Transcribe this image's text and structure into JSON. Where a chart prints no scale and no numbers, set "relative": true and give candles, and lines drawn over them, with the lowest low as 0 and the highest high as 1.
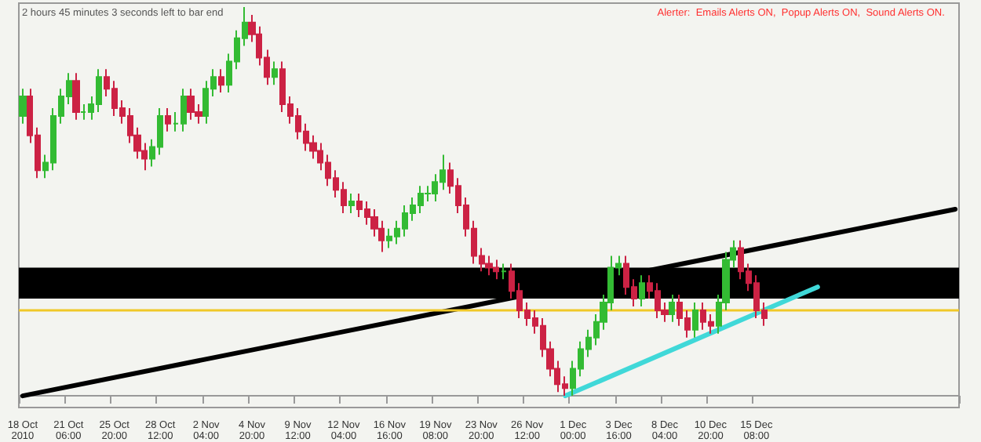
{
  "chart_data": {
    "type": "candlestick",
    "relative": true,
    "annotations": [
      "2 hours 45 minutes 3 seconds left to bar end",
      "Alerter:  Emails Alerts ON,  Popup Alerts ON,  Sound Alerts ON."
    ],
    "categories": [
      "18 Oct 2010",
      null,
      null,
      null,
      null,
      null,
      "21 Oct 06:00",
      null,
      null,
      null,
      null,
      null,
      "25 Oct 20:00",
      null,
      null,
      null,
      null,
      null,
      "28 Oct 12:00",
      null,
      null,
      null,
      null,
      null,
      "2 Nov 04:00",
      null,
      null,
      null,
      null,
      null,
      "4 Nov 20:00",
      null,
      null,
      null,
      null,
      null,
      "9 Nov 12:00",
      null,
      null,
      null,
      null,
      null,
      "12 Nov 04:00",
      null,
      null,
      null,
      null,
      null,
      "16 Nov 16:00",
      null,
      null,
      null,
      null,
      null,
      "19 Nov 08:00",
      null,
      null,
      null,
      null,
      null,
      "23 Nov 20:00",
      null,
      null,
      null,
      null,
      null,
      "26 Nov 12:00",
      null,
      null,
      null,
      null,
      null,
      "1 Dec 00:00",
      null,
      null,
      null,
      null,
      null,
      "3 Dec 16:00",
      null,
      null,
      null,
      null,
      null,
      "8 Dec 04:00",
      null,
      null,
      null,
      null,
      null,
      "10 Dec 20:00",
      null,
      null,
      null,
      null,
      null,
      "15 Dec 08:00",
      null,
      null,
      null,
      null,
      null,
      null,
      null,
      null,
      null,
      null,
      null,
      null,
      null,
      null,
      null,
      null,
      null,
      null,
      null,
      null,
      null,
      null,
      null,
      null,
      null,
      null
    ],
    "ohlc": [
      [
        0.72,
        0.79,
        0.7,
        0.77
      ],
      [
        0.77,
        0.79,
        0.65,
        0.67
      ],
      [
        0.67,
        0.69,
        0.56,
        0.58
      ],
      [
        0.58,
        0.62,
        0.56,
        0.6
      ],
      [
        0.6,
        0.74,
        0.58,
        0.72
      ],
      [
        0.72,
        0.79,
        0.7,
        0.77
      ],
      [
        0.77,
        0.83,
        0.75,
        0.81
      ],
      [
        0.81,
        0.83,
        0.71,
        0.73
      ],
      [
        0.73,
        0.75,
        0.71,
        0.73
      ],
      [
        0.73,
        0.77,
        0.71,
        0.75
      ],
      [
        0.75,
        0.84,
        0.73,
        0.82
      ],
      [
        0.82,
        0.84,
        0.77,
        0.79
      ],
      [
        0.79,
        0.81,
        0.72,
        0.74
      ],
      [
        0.74,
        0.76,
        0.7,
        0.72
      ],
      [
        0.72,
        0.74,
        0.65,
        0.67
      ],
      [
        0.67,
        0.69,
        0.61,
        0.63
      ],
      [
        0.63,
        0.65,
        0.58,
        0.61
      ],
      [
        0.61,
        0.66,
        0.59,
        0.64
      ],
      [
        0.64,
        0.74,
        0.62,
        0.72
      ],
      [
        0.72,
        0.74,
        0.68,
        0.7
      ],
      [
        0.7,
        0.73,
        0.68,
        0.7
      ],
      [
        0.7,
        0.79,
        0.68,
        0.77
      ],
      [
        0.77,
        0.79,
        0.71,
        0.73
      ],
      [
        0.73,
        0.75,
        0.7,
        0.72
      ],
      [
        0.72,
        0.81,
        0.7,
        0.79
      ],
      [
        0.79,
        0.84,
        0.77,
        0.82
      ],
      [
        0.82,
        0.84,
        0.78,
        0.8
      ],
      [
        0.8,
        0.88,
        0.78,
        0.86
      ],
      [
        0.86,
        0.94,
        0.84,
        0.92
      ],
      [
        0.92,
        1.0,
        0.9,
        0.96
      ],
      [
        0.96,
        0.98,
        0.91,
        0.93
      ],
      [
        0.93,
        0.95,
        0.85,
        0.87
      ],
      [
        0.87,
        0.89,
        0.8,
        0.82
      ],
      [
        0.82,
        0.86,
        0.8,
        0.84
      ],
      [
        0.84,
        0.86,
        0.73,
        0.75
      ],
      [
        0.75,
        0.77,
        0.7,
        0.72
      ],
      [
        0.72,
        0.74,
        0.66,
        0.68
      ],
      [
        0.68,
        0.7,
        0.63,
        0.65
      ],
      [
        0.65,
        0.67,
        0.61,
        0.63
      ],
      [
        0.63,
        0.65,
        0.58,
        0.6
      ],
      [
        0.6,
        0.62,
        0.54,
        0.56
      ],
      [
        0.56,
        0.58,
        0.51,
        0.53
      ],
      [
        0.53,
        0.55,
        0.47,
        0.49
      ],
      [
        0.49,
        0.52,
        0.47,
        0.5
      ],
      [
        0.5,
        0.52,
        0.46,
        0.48
      ],
      [
        0.48,
        0.5,
        0.44,
        0.46
      ],
      [
        0.46,
        0.48,
        0.41,
        0.43
      ],
      [
        0.43,
        0.45,
        0.37,
        0.4
      ],
      [
        0.4,
        0.43,
        0.38,
        0.41
      ],
      [
        0.41,
        0.45,
        0.39,
        0.43
      ],
      [
        0.43,
        0.49,
        0.41,
        0.47
      ],
      [
        0.47,
        0.51,
        0.45,
        0.49
      ],
      [
        0.49,
        0.54,
        0.47,
        0.52
      ],
      [
        0.52,
        0.54,
        0.5,
        0.52
      ],
      [
        0.52,
        0.57,
        0.5,
        0.55
      ],
      [
        0.55,
        0.62,
        0.53,
        0.58
      ],
      [
        0.58,
        0.6,
        0.52,
        0.54
      ],
      [
        0.54,
        0.56,
        0.47,
        0.49
      ],
      [
        0.49,
        0.51,
        0.41,
        0.43
      ],
      [
        0.43,
        0.45,
        0.34,
        0.36
      ],
      [
        0.36,
        0.38,
        0.32,
        0.34
      ],
      [
        0.34,
        0.36,
        0.31,
        0.33
      ],
      [
        0.33,
        0.35,
        0.3,
        0.32
      ],
      [
        0.32,
        0.34,
        0.3,
        0.32
      ],
      [
        0.32,
        0.34,
        0.25,
        0.27
      ],
      [
        0.27,
        0.29,
        0.2,
        0.22
      ],
      [
        0.22,
        0.24,
        0.18,
        0.2
      ],
      [
        0.2,
        0.22,
        0.16,
        0.18
      ],
      [
        0.18,
        0.2,
        0.1,
        0.12
      ],
      [
        0.12,
        0.14,
        0.05,
        0.07
      ],
      [
        0.07,
        0.09,
        0.01,
        0.03
      ],
      [
        0.03,
        0.05,
        0.0,
        0.02
      ],
      [
        0.02,
        0.09,
        0.0,
        0.07
      ],
      [
        0.07,
        0.14,
        0.05,
        0.12
      ],
      [
        0.12,
        0.17,
        0.1,
        0.15
      ],
      [
        0.15,
        0.21,
        0.13,
        0.19
      ],
      [
        0.19,
        0.26,
        0.17,
        0.24
      ],
      [
        0.24,
        0.36,
        0.22,
        0.33
      ],
      [
        0.33,
        0.36,
        0.31,
        0.34
      ],
      [
        0.34,
        0.36,
        0.26,
        0.28
      ],
      [
        0.28,
        0.3,
        0.23,
        0.25
      ],
      [
        0.25,
        0.31,
        0.23,
        0.29
      ],
      [
        0.29,
        0.31,
        0.25,
        0.27
      ],
      [
        0.27,
        0.29,
        0.2,
        0.22
      ],
      [
        0.22,
        0.24,
        0.19,
        0.21
      ],
      [
        0.21,
        0.26,
        0.19,
        0.24
      ],
      [
        0.24,
        0.26,
        0.18,
        0.2
      ],
      [
        0.2,
        0.22,
        0.15,
        0.17
      ],
      [
        0.17,
        0.24,
        0.15,
        0.22
      ],
      [
        0.22,
        0.24,
        0.17,
        0.19
      ],
      [
        0.19,
        0.21,
        0.16,
        0.18
      ],
      [
        0.18,
        0.26,
        0.16,
        0.24
      ],
      [
        0.24,
        0.37,
        0.22,
        0.35
      ],
      [
        0.35,
        0.4,
        0.33,
        0.38
      ],
      [
        0.38,
        0.4,
        0.3,
        0.32
      ],
      [
        0.32,
        0.34,
        0.27,
        0.29
      ],
      [
        0.29,
        0.31,
        0.2,
        0.22
      ],
      [
        0.22,
        0.24,
        0.18,
        0.2
      ],
      null,
      null,
      null,
      null,
      null,
      null,
      null,
      null,
      null,
      null,
      null,
      null,
      null,
      null,
      null,
      null,
      null,
      null,
      null,
      null,
      null,
      null,
      null,
      null,
      null
    ],
    "colors": [
      "#33bb33",
      "#cc2244",
      "#cc2244",
      "#33bb33",
      "#33bb33",
      "#33bb33",
      "#33bb33",
      "#cc2244",
      "#33bb33",
      "#33bb33",
      "#33bb33",
      "#cc2244",
      "#cc2244",
      "#cc2244",
      "#cc2244",
      "#cc2244",
      "#cc2244",
      "#33bb33",
      "#33bb33",
      "#cc2244",
      "#33bb33",
      "#33bb33",
      "#cc2244",
      "#cc2244",
      "#33bb33",
      "#33bb33",
      "#cc2244",
      "#33bb33",
      "#33bb33",
      "#33bb33",
      "#cc2244",
      "#cc2244",
      "#cc2244",
      "#33bb33",
      "#cc2244",
      "#cc2244",
      "#cc2244",
      "#cc2244",
      "#cc2244",
      "#cc2244",
      "#cc2244",
      "#cc2244",
      "#cc2244",
      "#33bb33",
      "#cc2244",
      "#cc2244",
      "#cc2244",
      "#cc2244",
      "#33bb33",
      "#33bb33",
      "#33bb33",
      "#33bb33",
      "#33bb33",
      "#33bb33",
      "#33bb33",
      "#33bb33",
      "#cc2244",
      "#cc2244",
      "#cc2244",
      "#cc2244",
      "#cc2244",
      "#cc2244",
      "#cc2244",
      "#33bb33",
      "#cc2244",
      "#cc2244",
      "#cc2244",
      "#cc2244",
      "#cc2244",
      "#cc2244",
      "#cc2244",
      "#cc2244",
      "#33bb33",
      "#33bb33",
      "#33bb33",
      "#33bb33",
      "#33bb33",
      "#33bb33",
      "#33bb33",
      "#cc2244",
      "#cc2244",
      "#33bb33",
      "#cc2244",
      "#cc2244",
      "#cc2244",
      "#33bb33",
      "#cc2244",
      "#cc2244",
      "#33bb33",
      "#cc2244",
      "#cc2244",
      "#33bb33",
      "#33bb33",
      "#33bb33",
      "#cc2244",
      "#cc2244",
      "#cc2244",
      "#cc2244",
      null,
      null,
      null,
      null,
      null,
      null,
      null,
      null,
      null,
      null,
      null,
      null,
      null,
      null,
      null,
      null,
      null,
      null,
      null,
      null,
      null,
      null,
      null,
      null,
      null
    ],
    "series": [
      {
        "type": "line",
        "color": "#000000",
        "values": [
          0.0,
          null,
          null,
          null,
          null,
          null,
          null,
          null,
          null,
          null,
          null,
          null,
          null,
          null,
          null,
          null,
          null,
          null,
          null,
          null,
          null,
          null,
          null,
          null,
          null,
          null,
          null,
          null,
          null,
          null,
          null,
          null,
          null,
          null,
          null,
          null,
          null,
          null,
          null,
          null,
          null,
          null,
          null,
          null,
          null,
          null,
          null,
          null,
          null,
          null,
          null,
          null,
          null,
          null,
          null,
          null,
          null,
          null,
          null,
          null,
          null,
          null,
          null,
          null,
          null,
          null,
          null,
          null,
          null,
          null,
          null,
          null,
          null,
          null,
          null,
          null,
          null,
          null,
          null,
          null,
          null,
          null,
          null,
          null,
          null,
          null,
          null,
          null,
          null,
          null,
          null,
          null,
          null,
          null,
          null,
          null,
          null,
          null,
          null,
          null,
          null,
          null,
          null,
          null,
          null,
          null,
          null,
          null,
          null,
          null,
          null,
          null,
          null,
          null,
          null,
          null,
          null,
          null,
          null,
          null,
          null,
          null,
          0.48
        ]
      },
      {
        "type": "line",
        "color": "#40d8d8",
        "values": [
          null,
          null,
          null,
          null,
          null,
          null,
          null,
          null,
          null,
          null,
          null,
          null,
          null,
          null,
          null,
          null,
          null,
          null,
          null,
          null,
          null,
          null,
          null,
          null,
          null,
          null,
          null,
          null,
          null,
          null,
          null,
          null,
          null,
          null,
          null,
          null,
          null,
          null,
          null,
          null,
          null,
          null,
          null,
          null,
          null,
          null,
          null,
          null,
          null,
          null,
          null,
          null,
          null,
          null,
          null,
          null,
          null,
          null,
          null,
          null,
          null,
          null,
          null,
          null,
          null,
          null,
          null,
          null,
          null,
          null,
          null,
          0.0,
          null,
          null,
          null,
          null,
          null,
          null,
          null,
          null,
          null,
          null,
          null,
          null,
          null,
          null,
          null,
          null,
          null,
          null,
          null,
          null,
          null,
          null,
          null,
          null,
          null,
          null,
          null,
          null,
          null,
          null,
          null,
          null,
          0.28,
          null,
          null,
          null,
          null,
          null,
          null,
          null,
          null,
          null,
          null,
          null,
          null,
          null,
          null,
          null,
          null,
          null,
          null
        ]
      }
    ],
    "bands": [
      {
        "axis": "y",
        "from": 0.25,
        "to": 0.33,
        "color": "#000000"
      }
    ],
    "ref_lines": [
      {
        "axis": "y",
        "value": 0.22,
        "color": "#f0c828"
      }
    ]
  }
}
